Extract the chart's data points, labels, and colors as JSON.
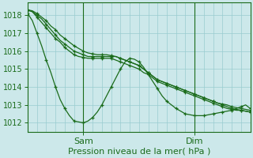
{
  "xlabel": "Pression niveau de la mer( hPa )",
  "bg_color": "#cce8ea",
  "grid_color": "#99ccd0",
  "line_color": "#1a6b1a",
  "yticks": [
    1012,
    1013,
    1014,
    1015,
    1016,
    1017,
    1018
  ],
  "ylim": [
    1011.5,
    1018.7
  ],
  "xlim": [
    0,
    48
  ],
  "xtick_positions": [
    12,
    36
  ],
  "xtick_labels": [
    "Sam",
    "Dim"
  ],
  "vlines": [
    12,
    36
  ],
  "n_points": 49,
  "series": [
    [
      1018.1,
      1017.7,
      1017.0,
      1016.3,
      1015.5,
      1014.8,
      1014.0,
      1013.3,
      1012.8,
      1012.4,
      1012.1,
      1012.05,
      1012.0,
      1012.1,
      1012.3,
      1012.6,
      1013.0,
      1013.5,
      1014.0,
      1014.5,
      1015.0,
      1015.4,
      1015.6,
      1015.55,
      1015.4,
      1015.1,
      1014.7,
      1014.3,
      1013.9,
      1013.5,
      1013.2,
      1013.0,
      1012.8,
      1012.65,
      1012.5,
      1012.45,
      1012.4,
      1012.4,
      1012.4,
      1012.45,
      1012.5,
      1012.55,
      1012.6,
      1012.65,
      1012.7,
      1012.8,
      1012.9,
      1013.0,
      1012.8
    ],
    [
      1018.3,
      1018.2,
      1018.0,
      1017.8,
      1017.5,
      1017.2,
      1016.9,
      1016.6,
      1016.4,
      1016.2,
      1016.0,
      1015.9,
      1015.8,
      1015.7,
      1015.7,
      1015.7,
      1015.7,
      1015.7,
      1015.7,
      1015.7,
      1015.6,
      1015.5,
      1015.4,
      1015.3,
      1015.2,
      1015.0,
      1014.8,
      1014.6,
      1014.4,
      1014.3,
      1014.2,
      1014.1,
      1014.0,
      1013.9,
      1013.8,
      1013.7,
      1013.6,
      1013.5,
      1013.4,
      1013.3,
      1013.2,
      1013.1,
      1013.0,
      1012.9,
      1012.8,
      1012.75,
      1012.7,
      1012.65,
      1012.6
    ],
    [
      1018.3,
      1018.2,
      1017.9,
      1017.6,
      1017.3,
      1017.0,
      1016.7,
      1016.5,
      1016.2,
      1016.0,
      1015.8,
      1015.7,
      1015.65,
      1015.6,
      1015.6,
      1015.6,
      1015.6,
      1015.6,
      1015.6,
      1015.5,
      1015.4,
      1015.3,
      1015.2,
      1015.1,
      1015.0,
      1014.8,
      1014.7,
      1014.5,
      1014.3,
      1014.2,
      1014.1,
      1014.0,
      1013.9,
      1013.8,
      1013.7,
      1013.6,
      1013.5,
      1013.4,
      1013.3,
      1013.2,
      1013.1,
      1013.0,
      1012.9,
      1012.8,
      1012.75,
      1012.7,
      1012.7,
      1012.65,
      1012.6
    ],
    [
      1018.3,
      1018.25,
      1018.1,
      1017.9,
      1017.7,
      1017.4,
      1017.2,
      1016.9,
      1016.7,
      1016.5,
      1016.3,
      1016.15,
      1016.0,
      1015.9,
      1015.85,
      1015.8,
      1015.8,
      1015.8,
      1015.75,
      1015.7,
      1015.6,
      1015.5,
      1015.4,
      1015.3,
      1015.2,
      1015.0,
      1014.8,
      1014.6,
      1014.4,
      1014.3,
      1014.2,
      1014.1,
      1014.0,
      1013.9,
      1013.8,
      1013.7,
      1013.6,
      1013.5,
      1013.4,
      1013.3,
      1013.2,
      1013.1,
      1013.05,
      1013.0,
      1012.9,
      1012.85,
      1012.8,
      1012.75,
      1012.7
    ]
  ],
  "marker_every": 2,
  "marker_size": 3.5,
  "linewidth": 0.9,
  "ytick_fontsize": 7,
  "xtick_fontsize": 8,
  "xlabel_fontsize": 8,
  "grid_major_lw": 0.5,
  "vline_lw": 0.8
}
